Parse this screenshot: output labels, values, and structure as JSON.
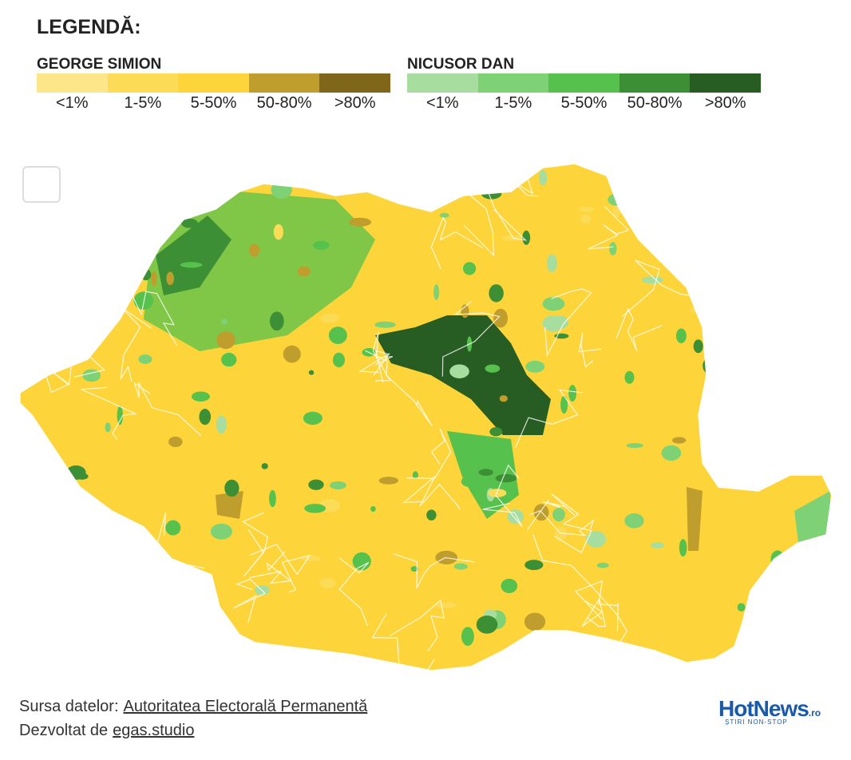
{
  "legend": {
    "title": "LEGENDĂ:",
    "groups": [
      {
        "name": "GEORGE SIMION",
        "items": [
          {
            "label": "<1%",
            "color": "#fde68a"
          },
          {
            "label": "1-5%",
            "color": "#fcdb57"
          },
          {
            "label": "5-50%",
            "color": "#fdd53a"
          },
          {
            "label": "50-80%",
            "color": "#bf9e2e"
          },
          {
            "label": ">80%",
            "color": "#806619"
          }
        ]
      },
      {
        "name": "NICUSOR DAN",
        "items": [
          {
            "label": "<1%",
            "color": "#a8dda0"
          },
          {
            "label": "1-5%",
            "color": "#7fd175"
          },
          {
            "label": "5-50%",
            "color": "#56c14c"
          },
          {
            "label": "50-80%",
            "color": "#3d8f36"
          },
          {
            "label": ">80%",
            "color": "#275c22"
          }
        ]
      }
    ]
  },
  "footer": {
    "source_prefix": "Sursa datelor:",
    "source_link": "Autoritatea Electorală Permanentă",
    "credit_prefix": "Dezvoltat de",
    "credit_link": "egas.studio"
  },
  "logo": {
    "name": "HotNews",
    "suffix": ".ro",
    "tagline": "ȘTIRI NON-STOP"
  }
}
